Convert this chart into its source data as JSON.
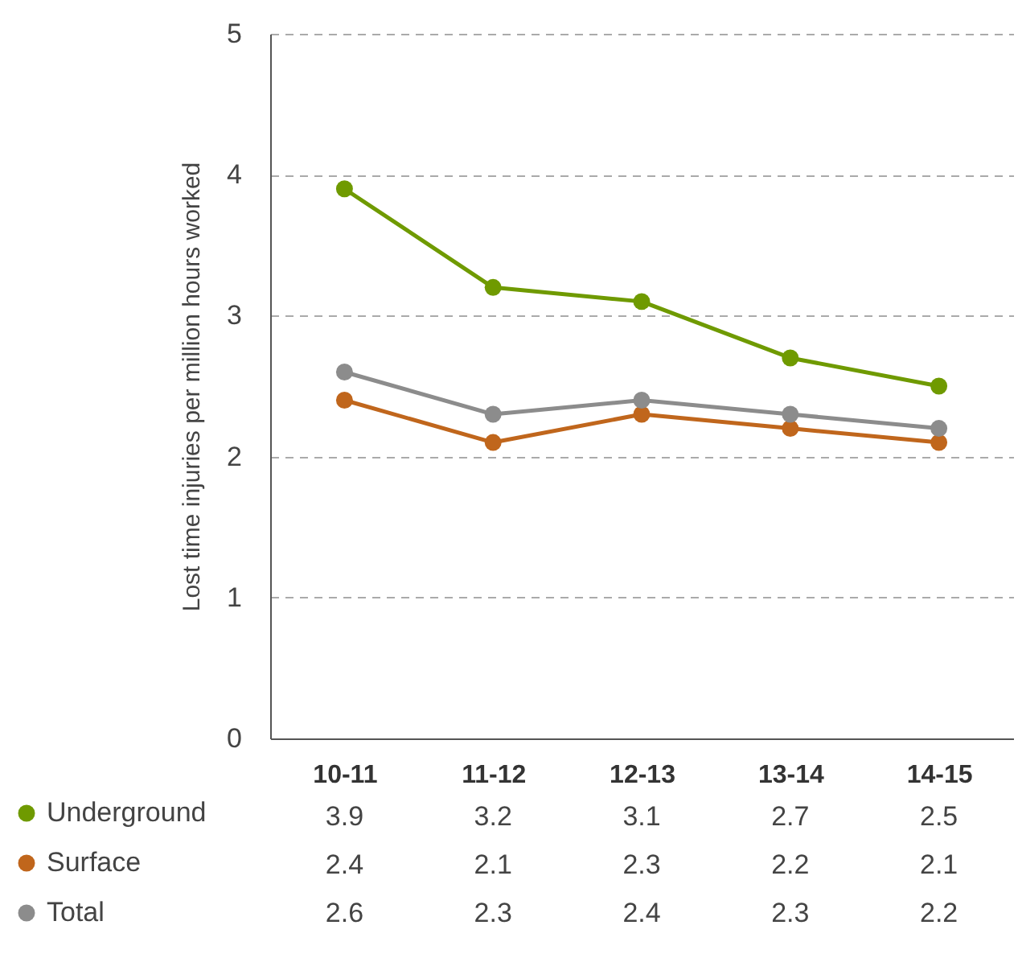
{
  "chart_data": {
    "type": "line",
    "ylabel": "Lost time injuries per million hours worked",
    "categories": [
      "10-11",
      "11-12",
      "12-13",
      "13-14",
      "14-15"
    ],
    "series": [
      {
        "name": "Underground",
        "color": "#6f9a00",
        "values": [
          3.9,
          3.2,
          3.1,
          2.7,
          2.5
        ]
      },
      {
        "name": "Surface",
        "color": "#c0661c",
        "values": [
          2.4,
          2.1,
          2.3,
          2.2,
          2.1
        ]
      },
      {
        "name": "Total",
        "color": "#8c8c8c",
        "values": [
          2.6,
          2.3,
          2.4,
          2.3,
          2.2
        ]
      }
    ],
    "ylim": [
      0,
      5
    ],
    "yticks": [
      0,
      1,
      2,
      3,
      4,
      5
    ],
    "grid": "y",
    "legend": "bottom",
    "data_labels": true,
    "marker": "circle",
    "line_style": "solid"
  }
}
